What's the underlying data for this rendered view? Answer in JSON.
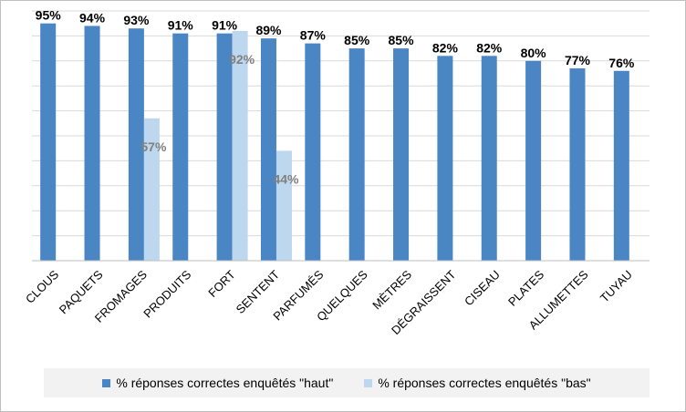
{
  "chart_data": {
    "type": "bar",
    "categories": [
      "CLOUS",
      "PAQUETS",
      "FROMAGES",
      "PRODUITS",
      "FORT",
      "SENTENT",
      "PARFUMÉS",
      "QUELQUES",
      "MÈTRES",
      "DÉGRAISSENT",
      "CISEAU",
      "PLATES",
      "ALLUMETTES",
      "TUYAU"
    ],
    "series": [
      {
        "name": "% réponses correctes enquêtés \"haut\"",
        "values": [
          95,
          94,
          93,
          91,
          91,
          89,
          87,
          85,
          85,
          82,
          82,
          80,
          77,
          76
        ],
        "labels": [
          "95%",
          "94%",
          "93%",
          "91%",
          "91%",
          "89%",
          "87%",
          "85%",
          "85%",
          "82%",
          "82%",
          "80%",
          "77%",
          "76%"
        ],
        "color": "#4a86c4",
        "label_color": "#000000"
      },
      {
        "name": "% réponses correctes enquêtés \"bas\"",
        "values": [
          null,
          null,
          57,
          null,
          92,
          44,
          null,
          null,
          null,
          null,
          null,
          null,
          null,
          null
        ],
        "labels": [
          null,
          null,
          "57%",
          null,
          "92%",
          "44%",
          null,
          null,
          null,
          null,
          null,
          null,
          null,
          null
        ],
        "color": "#bdd7ee",
        "label_color": "#808080"
      }
    ],
    "ylim": [
      0,
      100
    ],
    "grid": true,
    "legend_position": "bottom"
  }
}
